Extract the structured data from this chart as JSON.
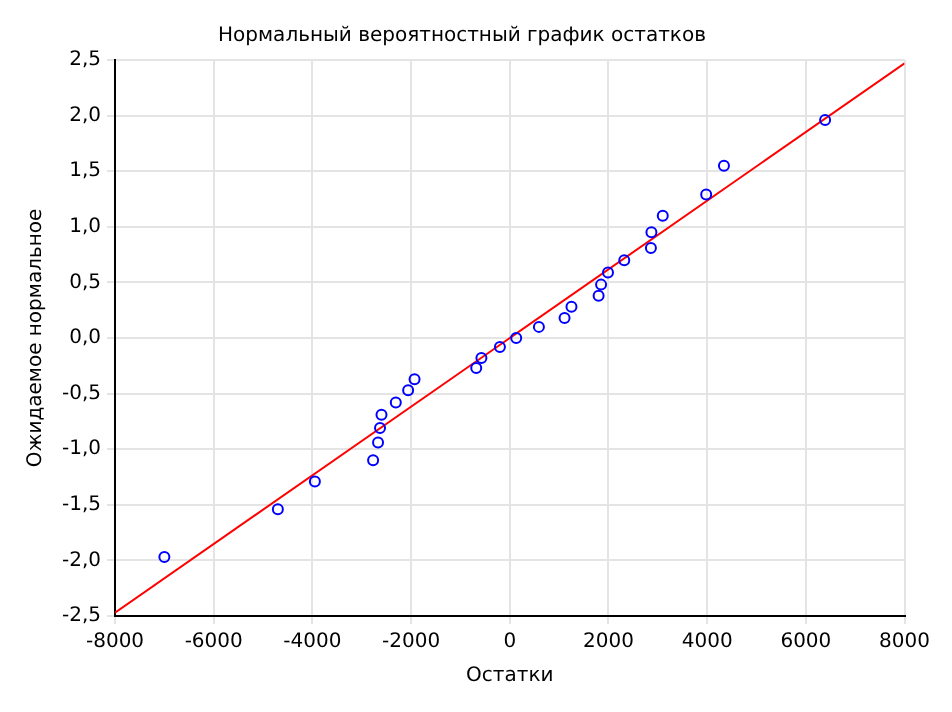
{
  "chart_data": {
    "type": "scatter",
    "title": "Нормальный вероятностный график остатков",
    "xlabel": "Остатки",
    "ylabel": "Ожидаемое нормальное",
    "series": [
      {
        "color": "#0000ff",
        "x": [
          -7000,
          -4700,
          -3950,
          -2770,
          -2670,
          -2630,
          -2600,
          -2310,
          -2060,
          -1930,
          -680,
          -575,
          -200,
          130,
          590,
          1110,
          1250,
          1800,
          1850,
          1990,
          2320,
          2860,
          2870,
          3100,
          3980,
          4340,
          6390
        ],
        "values": [
          -1.97,
          -1.54,
          -1.29,
          -1.1,
          -0.94,
          -0.81,
          -0.69,
          -0.58,
          -0.47,
          -0.37,
          -0.27,
          -0.18,
          -0.08,
          0.0,
          0.1,
          0.18,
          0.28,
          0.38,
          0.48,
          0.59,
          0.7,
          0.81,
          0.95,
          1.1,
          1.29,
          1.55,
          1.96
        ]
      },
      {
        "type": "line",
        "marker": "none",
        "color": "#ff0000",
        "x": [
          -8000,
          8000
        ],
        "values": [
          -2.47,
          2.47
        ]
      }
    ],
    "xlim": [
      -8000,
      8000
    ],
    "xticks": [
      -8000,
      -6000,
      -4000,
      -2000,
      0,
      2000,
      4000,
      6000,
      8000
    ],
    "ylim": [
      -2.5,
      2.5
    ],
    "yticks": [
      {
        "value": -2.5,
        "label": "-2,5"
      },
      {
        "value": -2,
        "label": "-2,0"
      },
      {
        "value": -1.5,
        "label": "-1,5"
      },
      {
        "value": -1,
        "label": "-1,0"
      },
      {
        "value": -0.5,
        "label": "-0,5"
      },
      {
        "value": 0,
        "label": "0,0"
      },
      {
        "value": 0.5,
        "label": "0,5"
      },
      {
        "value": 1,
        "label": "1,0"
      },
      {
        "value": 1.5,
        "label": "1,5"
      },
      {
        "value": 2,
        "label": "2,0"
      },
      {
        "value": 2.5,
        "label": "2,5"
      }
    ],
    "grid": true,
    "marker": "circle",
    "legend": false
  }
}
